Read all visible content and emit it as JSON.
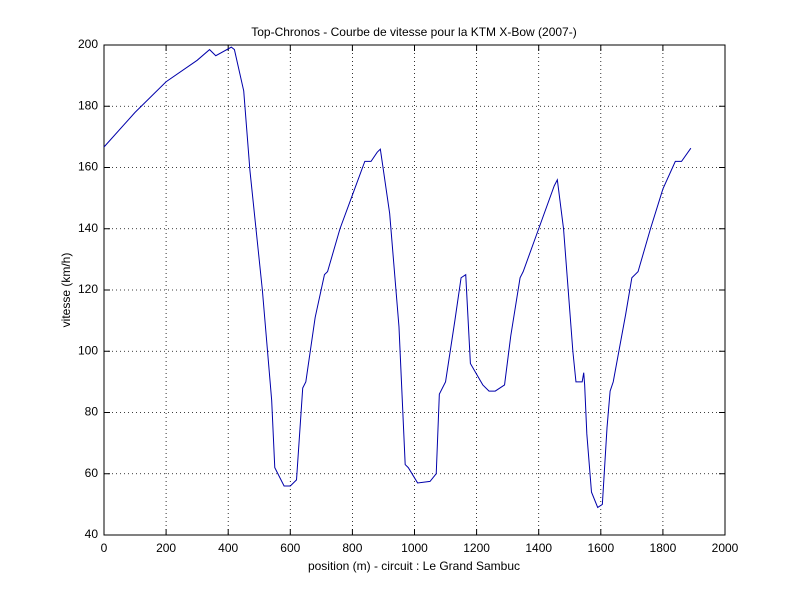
{
  "chart_data": {
    "type": "line",
    "title": "Top-Chronos - Courbe de vitesse pour la KTM X-Bow (2007-)",
    "x_label": "position (m) - circuit : Le Grand Sambuc",
    "y_label": "vitesse (km/h)",
    "x": [
      0,
      100,
      200,
      300,
      340,
      360,
      410,
      420,
      450,
      470,
      510,
      540,
      550,
      580,
      600,
      620,
      640,
      650,
      680,
      710,
      720,
      760,
      800,
      840,
      860,
      880,
      890,
      920,
      950,
      970,
      980,
      1010,
      1050,
      1070,
      1080,
      1100,
      1130,
      1150,
      1165,
      1180,
      1220,
      1240,
      1260,
      1290,
      1310,
      1340,
      1350,
      1400,
      1450,
      1460,
      1480,
      1510,
      1520,
      1540,
      1545,
      1548,
      1555,
      1570,
      1590,
      1605,
      1620,
      1630,
      1640,
      1680,
      1700,
      1720,
      1760,
      1800,
      1840,
      1860,
      1890
    ],
    "series": [
      {
        "name": "vitesse",
        "color": "#0000aa",
        "values": [
          166.7,
          178,
          188,
          195,
          198.5,
          196.5,
          199.3,
          198.5,
          185,
          159,
          120,
          84,
          62,
          56,
          56,
          58,
          88,
          90,
          111,
          125,
          126,
          140,
          151,
          162,
          162,
          165,
          166,
          145,
          108,
          63,
          62,
          57,
          57.5,
          60,
          86,
          90,
          110,
          124,
          125,
          96,
          89,
          87,
          87,
          89,
          105,
          124,
          126,
          140,
          154,
          156,
          140,
          100,
          90,
          90,
          93,
          89,
          73,
          54,
          49,
          50,
          75,
          87,
          90,
          112,
          124,
          126,
          140,
          153,
          162,
          162,
          166.3
        ]
      }
    ],
    "xlim": [
      0,
      2000
    ],
    "xticks": [
      0,
      200,
      400,
      600,
      800,
      1000,
      1200,
      1400,
      1600,
      1800,
      2000
    ],
    "ylim": [
      40,
      200
    ],
    "yticks": [
      40,
      60,
      80,
      100,
      120,
      140,
      160,
      180,
      200
    ],
    "grid": true
  }
}
